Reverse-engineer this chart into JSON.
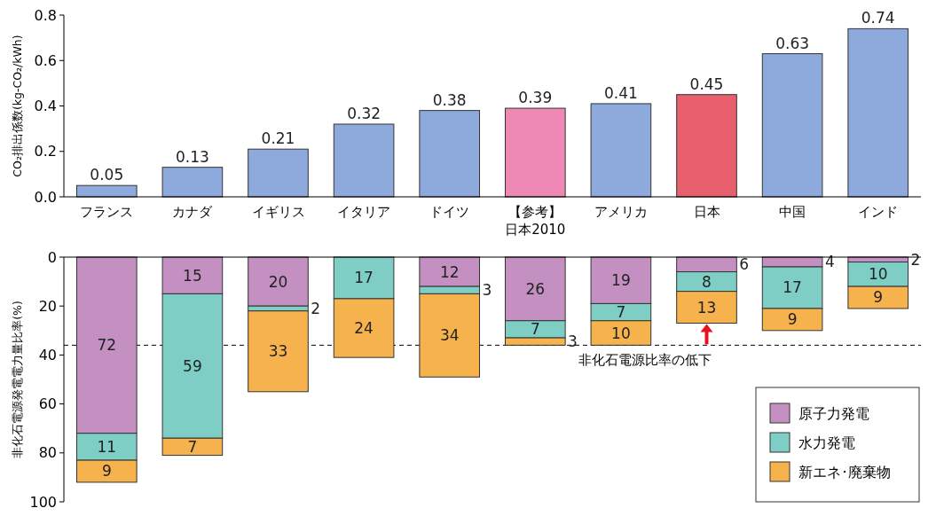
{
  "chart_data": [
    {
      "type": "bar",
      "ylabel": "CO₂排出係数(kg-CO₂/kWh)",
      "categories": [
        "フランス",
        "カナダ",
        "イギリス",
        "イタリア",
        "ドイツ",
        "【参考】日本2010",
        "アメリカ",
        "日本",
        "中国",
        "インド"
      ],
      "values": [
        0.05,
        0.13,
        0.21,
        0.32,
        0.38,
        0.39,
        0.41,
        0.45,
        0.63,
        0.74
      ],
      "colors": [
        "#8eaadc",
        "#8eaadc",
        "#8eaadc",
        "#8eaadc",
        "#8eaadc",
        "#ee88b4",
        "#8eaadc",
        "#e8606e",
        "#8eaadc",
        "#8eaadc"
      ],
      "ylim": [
        0,
        0.8
      ],
      "yticks": [
        {
          "value": 0,
          "label": "0.0"
        },
        0.2,
        0.4,
        0.6,
        0.8
      ],
      "data_labels": true,
      "grid": false,
      "legend": false
    },
    {
      "type": "bar",
      "stacked": true,
      "ylabel": "非化石電源発電電力量比率(%)",
      "categories": [
        "フランス",
        "カナダ",
        "イギリス",
        "イタリア",
        "ドイツ",
        "【参考】日本2010",
        "アメリカ",
        "日本",
        "中国",
        "インド"
      ],
      "tick_labels": "y",
      "series": [
        {
          "name": "原子力発電",
          "color": "#c490c2",
          "values": [
            72,
            15,
            20,
            null,
            12,
            26,
            19,
            6,
            4,
            2
          ]
        },
        {
          "name": "水力発電",
          "color": "#7ecec6",
          "values": [
            11,
            59,
            2,
            17,
            3,
            7,
            7,
            8,
            17,
            10
          ]
        },
        {
          "name": "新エネ･廃棄物",
          "color": "#f6b24c",
          "values": [
            9,
            7,
            33,
            24,
            34,
            3,
            10,
            13,
            9,
            9
          ]
        }
      ],
      "ylim": [
        100,
        0
      ],
      "yticks": [
        0,
        20,
        40,
        60,
        80,
        100
      ],
      "data_labels": true,
      "grid": false,
      "legend": "bottom right",
      "ref_lines": [
        {
          "axis": "y",
          "value": 36,
          "line_style": "dashed"
        }
      ],
      "annotations": [
        {
          "text": "非化石電源比率の低下",
          "x": "日本",
          "y": 36
        }
      ]
    }
  ]
}
